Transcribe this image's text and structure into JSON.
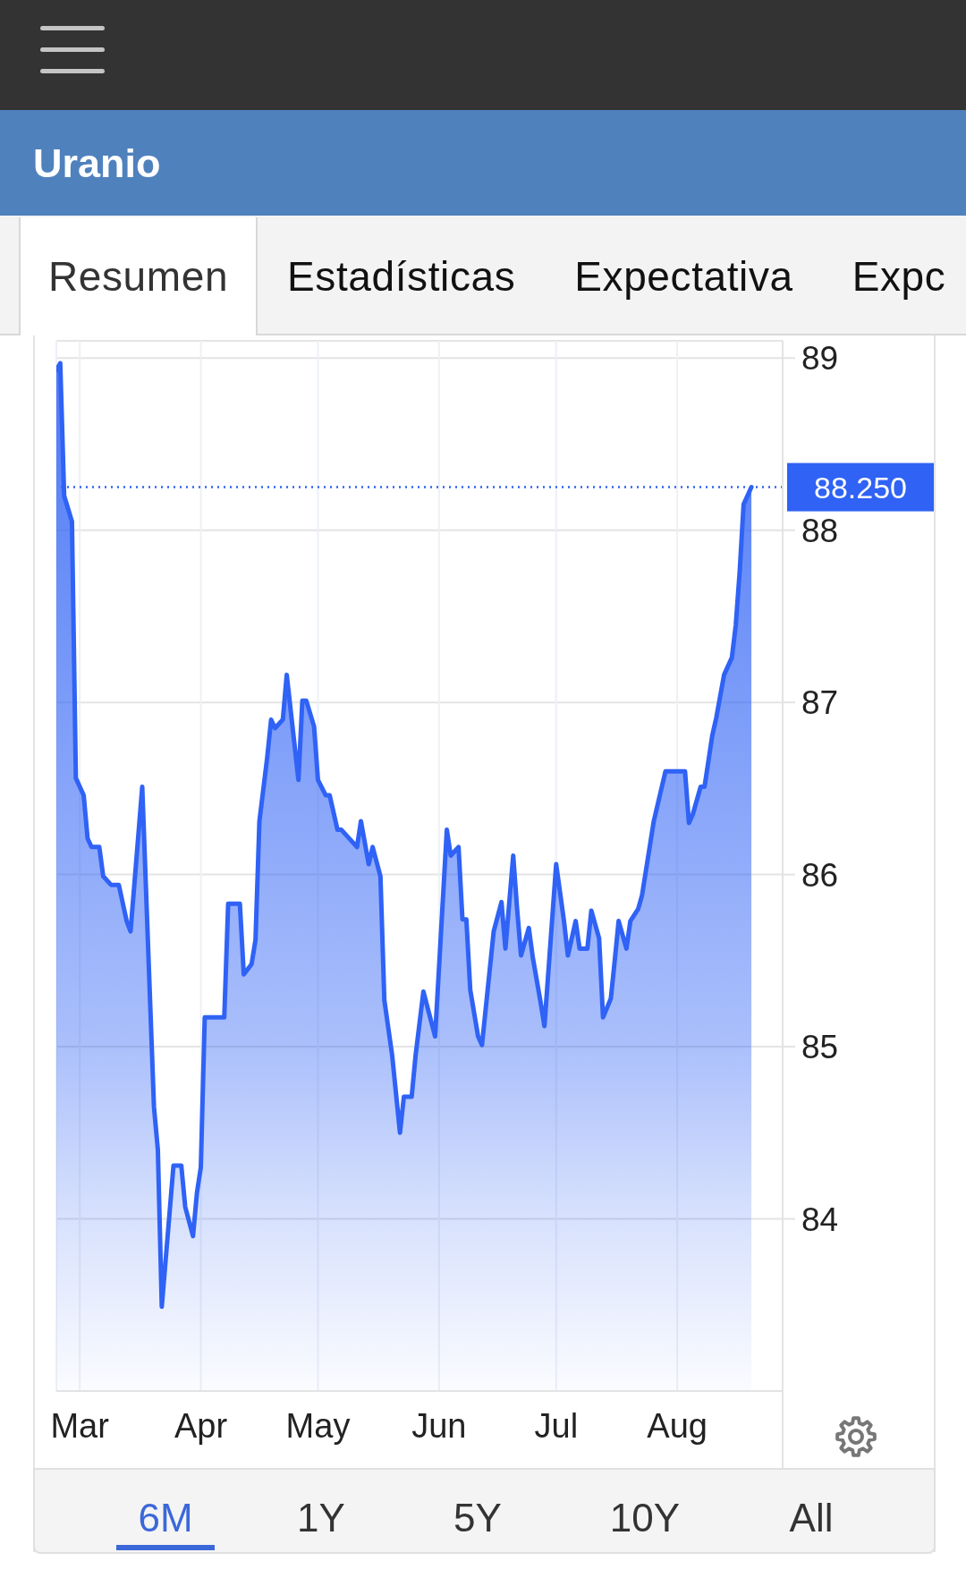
{
  "chart_data": {
    "type": "area",
    "title": "Uranio",
    "annotations": [
      "Resumen",
      "Estadísticas",
      "Expectativa",
      "Expc",
      "6M",
      "1Y",
      "5Y",
      "10Y",
      "All"
    ],
    "x": [
      "--02-23",
      "--02-24",
      "--02-25",
      "--02-27",
      "--02-28",
      "--03-02",
      "--03-03",
      "--03-04",
      "--03-06",
      "--03-07",
      "--03-09",
      "--03-11",
      "--03-13",
      "--03-14",
      "--03-17",
      "--03-20",
      "--03-21",
      "--03-22",
      "--03-25",
      "--03-27",
      "--03-28",
      "--03-30",
      "--03-31",
      "--04-01",
      "--04-02",
      "--04-07",
      "--04-08",
      "--04-11",
      "--04-12",
      "--04-14",
      "--04-15",
      "--04-16",
      "--04-18",
      "--04-19",
      "--04-20",
      "--04-22",
      "--04-23",
      "--04-26",
      "--04-27",
      "--04-28",
      "--04-30",
      "--05-01",
      "--05-03",
      "--05-04",
      "--05-06",
      "--05-07",
      "--05-11",
      "--05-12",
      "--05-14",
      "--05-15",
      "--05-17",
      "--05-18",
      "--05-20",
      "--05-22",
      "--05-23",
      "--05-25",
      "--05-26",
      "--05-28",
      "--05-31",
      "--06-03",
      "--06-04",
      "--06-06",
      "--06-07",
      "--06-08",
      "--06-09",
      "--06-11",
      "--06-12",
      "--06-15",
      "--06-17",
      "--06-18",
      "--06-20",
      "--06-21",
      "--06-22",
      "--06-24",
      "--06-25",
      "--06-27",
      "--06-28",
      "--07-01",
      "--07-03",
      "--07-04",
      "--07-06",
      "--07-07",
      "--07-09",
      "--07-10",
      "--07-12",
      "--07-13",
      "--07-15",
      "--07-16",
      "--07-17",
      "--07-19",
      "--07-20",
      "--07-22",
      "--07-23",
      "--07-26",
      "--07-29",
      "--08-03",
      "--08-04",
      "--08-05",
      "--08-07",
      "--08-08",
      "--08-10",
      "--08-11",
      "--08-13",
      "--08-15",
      "--08-16",
      "--08-17",
      "--08-18",
      "--08-20"
    ],
    "values": [
      88.93,
      88.97,
      88.2,
      88.05,
      86.56,
      86.46,
      86.21,
      86.16,
      86.16,
      85.99,
      85.94,
      85.94,
      85.73,
      85.67,
      86.51,
      84.65,
      84.4,
      83.49,
      84.31,
      84.31,
      84.07,
      83.9,
      84.15,
      84.3,
      85.17,
      85.17,
      85.83,
      85.83,
      85.42,
      85.48,
      85.62,
      86.31,
      86.68,
      86.9,
      86.85,
      86.9,
      87.16,
      86.55,
      87.01,
      87.01,
      86.86,
      86.55,
      86.46,
      86.46,
      86.26,
      86.26,
      86.16,
      86.31,
      86.06,
      86.16,
      85.99,
      85.27,
      84.95,
      84.5,
      84.71,
      84.71,
      84.95,
      85.32,
      85.06,
      86.26,
      86.11,
      86.16,
      85.74,
      85.74,
      85.33,
      85.06,
      85.01,
      85.67,
      85.84,
      85.57,
      86.11,
      85.8,
      85.53,
      85.69,
      85.52,
      85.26,
      85.12,
      86.06,
      85.73,
      85.53,
      85.73,
      85.57,
      85.57,
      85.79,
      85.63,
      85.17,
      85.28,
      85.5,
      85.73,
      85.57,
      85.73,
      85.8,
      85.88,
      86.31,
      86.6,
      86.6,
      86.3,
      86.35,
      86.51,
      86.51,
      86.81,
      86.91,
      87.16,
      87.26,
      87.45,
      87.76,
      88.15,
      88.25
    ],
    "color": "#2f62f5",
    "xlim": [
      "--02-23",
      "--08-28"
    ],
    "xticks": [
      {
        "value": "--03-01",
        "label": "Mar"
      },
      {
        "value": "--04-01",
        "label": "Apr"
      },
      {
        "value": "--05-01",
        "label": "May"
      },
      {
        "value": "--06-01",
        "label": "Jun"
      },
      {
        "value": "--07-01",
        "label": "Jul"
      },
      {
        "value": "--08-01",
        "label": "Aug"
      }
    ],
    "ylim": [
      83,
      89.1
    ],
    "yticks": [
      84,
      85,
      86,
      87,
      88,
      89
    ],
    "grid": true,
    "ref_lines": [
      {
        "axis": "y",
        "value": 88.25,
        "label": "88.250",
        "color": "#2f62f5",
        "line_style": "dotted"
      }
    ]
  }
}
